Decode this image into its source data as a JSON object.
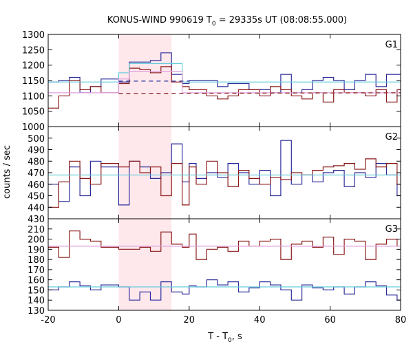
{
  "chart_data": {
    "type": "line",
    "title_main": "KONUS-WIND 990619 T",
    "title_sub": "0",
    "title_rest": " = 29335s UT (08:08:55.000)",
    "xlabel_main": "T - T",
    "xlabel_sub": "0",
    "xlabel_rest": ", s",
    "ylabel": "counts / sec",
    "xlim": [
      -20,
      80
    ],
    "x_ticks": [
      -20,
      0,
      20,
      40,
      60,
      80
    ],
    "highlight_interval": [
      0,
      15
    ],
    "colors": {
      "blue": "#2b2b9b",
      "red": "#8b1a1a",
      "cyan": "#66ccdd",
      "pink": "#e0a0e0",
      "highlight": "#ffe8ec"
    },
    "panels": [
      {
        "label": "G1",
        "ylim": [
          1000,
          1300
        ],
        "y_ticks": [
          1000,
          1050,
          1100,
          1150,
          1200,
          1250,
          1300
        ],
        "bin_edges": [
          -20,
          -17,
          -14,
          -11,
          -8,
          -5,
          0,
          3,
          6,
          9,
          12,
          15,
          18,
          20,
          22,
          25,
          28,
          31,
          34,
          37,
          40,
          43,
          46,
          49,
          52,
          55,
          58,
          61,
          64,
          67,
          70,
          73,
          76,
          79,
          80
        ],
        "series": [
          {
            "color": "blue",
            "values": [
              1145,
              1150,
              1160,
              1110,
              1130,
              1155,
              1145,
              1210,
              1210,
              1215,
              1240,
              1170,
              1140,
              1150,
              1150,
              1150,
              1130,
              1140,
              1140,
              1120,
              1120,
              1110,
              1170,
              1110,
              1120,
              1150,
              1160,
              1150,
              1120,
              1150,
              1170,
              1130,
              1170,
              1170
            ]
          },
          {
            "color": "red",
            "values": [
              1060,
              1100,
              1150,
              1120,
              1130,
              1110,
              1140,
              1190,
              1185,
              1175,
              1195,
              1145,
              1130,
              1120,
              1120,
              1100,
              1090,
              1100,
              1120,
              1120,
              1100,
              1130,
              1120,
              1100,
              1090,
              1110,
              1080,
              1120,
              1110,
              1110,
              1100,
              1120,
              1080,
              1120
            ]
          },
          {
            "color": "cyan",
            "style": "solid",
            "values": [
              1145,
              1145,
              1145,
              1145,
              1145,
              1145,
              1175,
              1205,
              1205,
              1205,
              1205,
              1205,
              1145,
              1145,
              1145,
              1145,
              1145,
              1145,
              1145,
              1145,
              1145,
              1145,
              1145,
              1145,
              1145,
              1145,
              1145,
              1145,
              1145,
              1145,
              1145,
              1145,
              1145,
              1145
            ]
          },
          {
            "color": "pink",
            "style": "solid",
            "values": [
              1110,
              1110,
              1110,
              1110,
              1110,
              1110,
              1155,
              1180,
              1180,
              1180,
              1180,
              1180,
              1110,
              1110,
              1110,
              1110,
              1110,
              1110,
              1110,
              1110,
              1110,
              1110,
              1110,
              1110,
              1110,
              1110,
              1110,
              1110,
              1110,
              1110,
              1110,
              1110,
              1110,
              1110
            ]
          }
        ],
        "fits": [
          {
            "color": "blue",
            "x": [
              0,
              20
            ],
            "y": [
              1148,
              1148
            ]
          },
          {
            "color": "red",
            "x": [
              0,
              80
            ],
            "y": [
              1108,
              1110
            ]
          }
        ]
      },
      {
        "label": "G2",
        "ylim": [
          430,
          510
        ],
        "y_ticks": [
          430,
          440,
          450,
          460,
          470,
          480,
          490,
          500
        ],
        "bin_edges": [
          -20,
          -17,
          -14,
          -11,
          -8,
          -5,
          0,
          3,
          6,
          9,
          12,
          15,
          18,
          20,
          22,
          25,
          28,
          31,
          34,
          37,
          40,
          43,
          46,
          49,
          52,
          55,
          58,
          61,
          64,
          67,
          70,
          73,
          76,
          79,
          80
        ],
        "series": [
          {
            "color": "blue",
            "values": [
              460,
              445,
              475,
              450,
              480,
              475,
              442,
              480,
              475,
              465,
              470,
              495,
              462,
              478,
              465,
              470,
              466,
              478,
              470,
              460,
              472,
              450,
              498,
              460,
              468,
              462,
              470,
              472,
              458,
              470,
              466,
              478,
              468,
              450
            ]
          },
          {
            "color": "red",
            "values": [
              440,
              462,
              480,
              465,
              460,
              478,
              475,
              480,
              470,
              475,
              450,
              478,
              442,
              475,
              460,
              480,
              470,
              458,
              472,
              465,
              460,
              466,
              464,
              470,
              468,
              472,
              475,
              476,
              478,
              473,
              482,
              475,
              478,
              460
            ]
          },
          {
            "color": "cyan",
            "style": "solid",
            "values": [
              468,
              468,
              468,
              468,
              468,
              468,
              468,
              468,
              468,
              468,
              468,
              468,
              468,
              468,
              468,
              468,
              468,
              468,
              468,
              468,
              468,
              468,
              468,
              468,
              468,
              468,
              468,
              468,
              468,
              468,
              468,
              468,
              468,
              468
            ]
          }
        ]
      },
      {
        "label": "G3",
        "ylim": [
          130,
          220
        ],
        "y_ticks": [
          130,
          140,
          150,
          160,
          170,
          180,
          190,
          200,
          210
        ],
        "bin_edges": [
          -20,
          -17,
          -14,
          -11,
          -8,
          -5,
          0,
          3,
          6,
          9,
          12,
          15,
          18,
          20,
          22,
          25,
          28,
          31,
          34,
          37,
          40,
          43,
          46,
          49,
          52,
          55,
          58,
          61,
          64,
          67,
          70,
          73,
          76,
          79,
          80
        ],
        "series": [
          {
            "color": "blue",
            "values": [
              150,
              153,
              158,
              154,
              150,
              155,
              153,
              140,
              148,
              140,
              158,
              148,
              146,
              154,
              153,
              160,
              155,
              158,
              148,
              152,
              158,
              155,
              150,
              140,
              155,
              152,
              150,
              153,
              146,
              153,
              158,
              154,
              145,
              140
            ]
          },
          {
            "color": "red",
            "values": [
              192,
              182,
              208,
              200,
              198,
              192,
              190,
              190,
              192,
              188,
              207,
              195,
              192,
              205,
              180,
              190,
              192,
              188,
              198,
              193,
              198,
              200,
              180,
              195,
              198,
              192,
              202,
              185,
              200,
              198,
              180,
              195,
              200,
              193
            ]
          },
          {
            "color": "cyan",
            "style": "solid",
            "values": [
              153,
              153,
              153,
              153,
              153,
              153,
              153,
              153,
              153,
              153,
              153,
              153,
              153,
              153,
              153,
              153,
              153,
              153,
              153,
              153,
              153,
              153,
              153,
              153,
              153,
              153,
              153,
              153,
              153,
              153,
              153,
              153,
              153,
              153
            ]
          },
          {
            "color": "pink",
            "style": "solid",
            "values": [
              193,
              193,
              193,
              193,
              193,
              193,
              193,
              193,
              193,
              193,
              193,
              193,
              193,
              193,
              193,
              193,
              193,
              193,
              193,
              193,
              193,
              193,
              193,
              193,
              193,
              193,
              193,
              193,
              193,
              193,
              193,
              193,
              193,
              193
            ]
          }
        ]
      }
    ]
  }
}
